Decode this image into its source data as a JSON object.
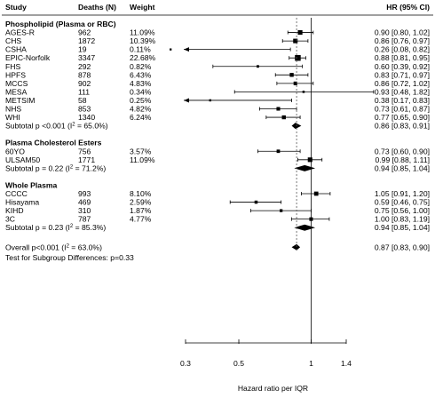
{
  "chart_data": {
    "type": "forest",
    "x_axis": {
      "label": "Hazard ratio per IQR",
      "scale": "log",
      "ticks": [
        0.3,
        0.5,
        1,
        1.4
      ],
      "tick_labels": [
        "0.3",
        "0.5",
        "1",
        "1.4"
      ],
      "range": [
        0.3,
        1.4
      ],
      "reference_line": 1,
      "pooled_estimate_line": 0.87
    },
    "headers": {
      "study": "Study",
      "deaths": "Deaths (N)",
      "weight": "Weight",
      "hr": "HR (95% CI)"
    },
    "groups": [
      {
        "name": "Phospholipid (Plasma or RBC)",
        "studies": [
          {
            "label": "AGES-R",
            "deaths": "962",
            "weight": "11.09%",
            "hr": 0.9,
            "lo": 0.8,
            "hi": 1.02,
            "ci_text": "0.90 [0.80, 1.02]"
          },
          {
            "label": "CHS",
            "deaths": "1872",
            "weight": "10.39%",
            "hr": 0.86,
            "lo": 0.76,
            "hi": 0.97,
            "ci_text": "0.86 [0.76, 0.97]"
          },
          {
            "label": "CSHA",
            "deaths": "19",
            "weight": "0.11%",
            "hr": 0.26,
            "lo": 0.08,
            "hi": 0.82,
            "ci_text": "0.26 [0.08, 0.82]"
          },
          {
            "label": "EPIC-Norfolk",
            "deaths": "3347",
            "weight": "22.68%",
            "hr": 0.88,
            "lo": 0.81,
            "hi": 0.95,
            "ci_text": "0.88 [0.81, 0.95]"
          },
          {
            "label": "FHS",
            "deaths": "292",
            "weight": "0.82%",
            "hr": 0.6,
            "lo": 0.39,
            "hi": 0.92,
            "ci_text": "0.60 [0.39, 0.92]"
          },
          {
            "label": "HPFS",
            "deaths": "878",
            "weight": "6.43%",
            "hr": 0.83,
            "lo": 0.71,
            "hi": 0.97,
            "ci_text": "0.83 [0.71, 0.97]"
          },
          {
            "label": "MCCS",
            "deaths": "902",
            "weight": "4.83%",
            "hr": 0.86,
            "lo": 0.72,
            "hi": 1.02,
            "ci_text": "0.86 [0.72, 1.02]"
          },
          {
            "label": "MESA",
            "deaths": "111",
            "weight": "0.34%",
            "hr": 0.93,
            "lo": 0.48,
            "hi": 1.82,
            "ci_text": "0.93 [0.48, 1.82]"
          },
          {
            "label": "METSIM",
            "deaths": "58",
            "weight": "0.25%",
            "hr": 0.38,
            "lo": 0.17,
            "hi": 0.83,
            "ci_text": "0.38 [0.17, 0.83]"
          },
          {
            "label": "NHS",
            "deaths": "853",
            "weight": "4.82%",
            "hr": 0.73,
            "lo": 0.61,
            "hi": 0.87,
            "ci_text": "0.73 [0.61, 0.87]"
          },
          {
            "label": "WHI",
            "deaths": "1340",
            "weight": "6.24%",
            "hr": 0.77,
            "lo": 0.65,
            "hi": 0.9,
            "ci_text": "0.77 [0.65, 0.90]"
          }
        ],
        "subtotal": {
          "prefix": "Subtotal p <0.001 (I",
          "sup": "2",
          "suffix": " = 65.0%)",
          "hr": 0.86,
          "lo": 0.83,
          "hi": 0.91,
          "ci_text": "0.86 [0.83, 0.91]"
        }
      },
      {
        "name": "Plasma Cholesterol Esters",
        "studies": [
          {
            "label": "60YO",
            "deaths": "756",
            "weight": "3.57%",
            "hr": 0.73,
            "lo": 0.6,
            "hi": 0.9,
            "ci_text": "0.73 [0.60, 0.90]"
          },
          {
            "label": "ULSAM50",
            "deaths": "1771",
            "weight": "11.09%",
            "hr": 0.99,
            "lo": 0.88,
            "hi": 1.11,
            "ci_text": "0.99 [0.88, 1.11]"
          }
        ],
        "subtotal": {
          "prefix": "Subtotal p = 0.22 (I",
          "sup": "2",
          "suffix": " = 71.2%)",
          "hr": 0.94,
          "lo": 0.85,
          "hi": 1.04,
          "ci_text": "0.94 [0.85, 1.04]"
        }
      },
      {
        "name": "Whole Plasma",
        "studies": [
          {
            "label": "CCCC",
            "deaths": "993",
            "weight": "8.10%",
            "hr": 1.05,
            "lo": 0.91,
            "hi": 1.2,
            "ci_text": "1.05 [0.91, 1.20]"
          },
          {
            "label": "Hisayama",
            "deaths": "469",
            "weight": "2.59%",
            "hr": 0.59,
            "lo": 0.46,
            "hi": 0.75,
            "ci_text": "0.59 [0.46, 0.75]"
          },
          {
            "label": "KIHD",
            "deaths": "310",
            "weight": "1.87%",
            "hr": 0.75,
            "lo": 0.56,
            "hi": 1.0,
            "ci_text": "0.75 [0.56, 1.00]"
          },
          {
            "label": "3C",
            "deaths": "787",
            "weight": "4.77%",
            "hr": 1.0,
            "lo": 0.83,
            "hi": 1.19,
            "ci_text": "1.00 [0.83, 1.19]"
          }
        ],
        "subtotal": {
          "prefix": "Subtotal p = 0.23 (I",
          "sup": "2",
          "suffix": " = 85.3%)",
          "hr": 0.94,
          "lo": 0.85,
          "hi": 1.04,
          "ci_text": "0.94 [0.85, 1.04]"
        }
      }
    ],
    "overall": {
      "prefix": "Overall p<0.001 (I",
      "sup": "2",
      "suffix": " = 63.0%)",
      "hr": 0.87,
      "lo": 0.83,
      "hi": 0.9,
      "ci_text": "0.87 [0.83, 0.90]"
    },
    "subgroup_test": "Test for Subgroup Differences: p=0.33"
  }
}
